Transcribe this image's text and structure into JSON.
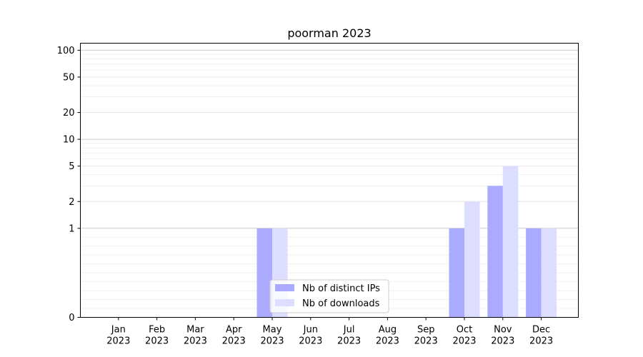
{
  "chart_data": {
    "type": "bar",
    "title": "poorman 2023",
    "xlabel": "",
    "ylabel": "",
    "categories": [
      [
        "Jan",
        "2023"
      ],
      [
        "Feb",
        "2023"
      ],
      [
        "Mar",
        "2023"
      ],
      [
        "Apr",
        "2023"
      ],
      [
        "May",
        "2023"
      ],
      [
        "Jun",
        "2023"
      ],
      [
        "Jul",
        "2023"
      ],
      [
        "Aug",
        "2023"
      ],
      [
        "Sep",
        "2023"
      ],
      [
        "Oct",
        "2023"
      ],
      [
        "Nov",
        "2023"
      ],
      [
        "Dec",
        "2023"
      ]
    ],
    "series": [
      {
        "name": "Nb of distinct IPs",
        "color": "#aaaaff",
        "values": [
          0,
          0,
          0,
          0,
          1,
          0,
          0,
          0,
          0,
          1,
          3,
          1
        ]
      },
      {
        "name": "Nb of downloads",
        "color": "#ddddff",
        "values": [
          0,
          0,
          0,
          0,
          1,
          0,
          0,
          0,
          0,
          2,
          5,
          1
        ]
      }
    ],
    "yscale": "symlog",
    "ylim": [
      0,
      120
    ],
    "yticks": [
      0,
      1,
      2,
      5,
      10,
      20,
      50,
      100
    ],
    "grid": true,
    "legend_position": "lower-center"
  }
}
